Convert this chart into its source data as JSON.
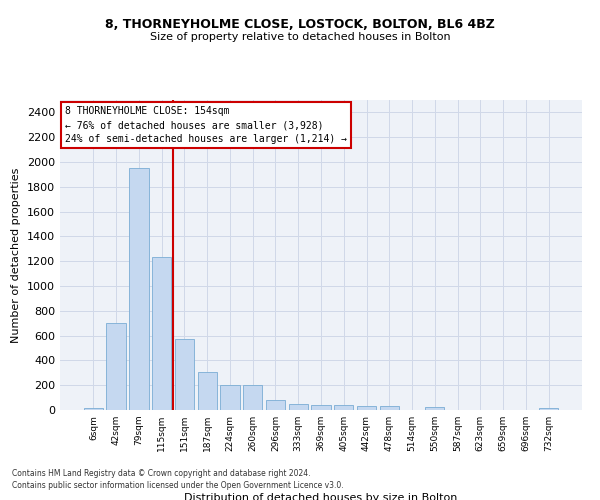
{
  "title": "8, THORNEYHOLME CLOSE, LOSTOCK, BOLTON, BL6 4BZ",
  "subtitle": "Size of property relative to detached houses in Bolton",
  "xlabel": "Distribution of detached houses by size in Bolton",
  "ylabel": "Number of detached properties",
  "footnote": "Contains HM Land Registry data © Crown copyright and database right 2024.\nContains public sector information licensed under the Open Government Licence v3.0.",
  "bar_labels": [
    "6sqm",
    "42sqm",
    "79sqm",
    "115sqm",
    "151sqm",
    "187sqm",
    "224sqm",
    "260sqm",
    "296sqm",
    "333sqm",
    "369sqm",
    "405sqm",
    "442sqm",
    "478sqm",
    "514sqm",
    "550sqm",
    "587sqm",
    "623sqm",
    "659sqm",
    "696sqm",
    "732sqm"
  ],
  "bar_values": [
    15,
    700,
    1950,
    1230,
    575,
    310,
    205,
    205,
    80,
    45,
    38,
    38,
    30,
    30,
    0,
    25,
    0,
    0,
    0,
    0,
    20
  ],
  "bar_color": "#c5d8f0",
  "bar_edge_color": "#7aadd4",
  "vline_x": 3.5,
  "vline_color": "#cc0000",
  "annotation_text": "8 THORNEYHOLME CLOSE: 154sqm\n← 76% of detached houses are smaller (3,928)\n24% of semi-detached houses are larger (1,214) →",
  "annotation_box_color": "#cc0000",
  "ylim": [
    0,
    2500
  ],
  "yticks": [
    0,
    200,
    400,
    600,
    800,
    1000,
    1200,
    1400,
    1600,
    1800,
    2000,
    2200,
    2400
  ],
  "grid_color": "#d0d8e8",
  "bg_color": "#eef2f8",
  "title_fontsize": 9,
  "subtitle_fontsize": 8,
  "ylabel_fontsize": 8,
  "xlabel_fontsize": 8,
  "ytick_fontsize": 8,
  "xtick_fontsize": 6.5,
  "annot_fontsize": 7,
  "footnote_fontsize": 5.5
}
